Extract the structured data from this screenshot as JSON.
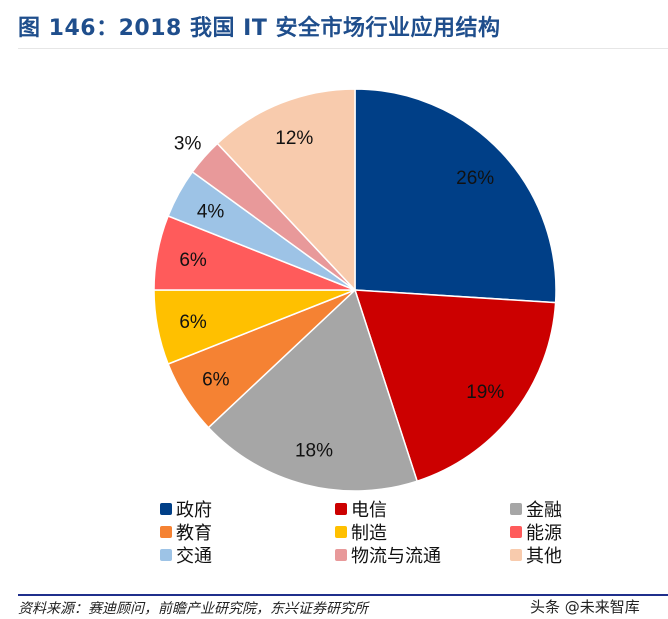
{
  "title": "图 146：2018 我国 IT 安全市场行业应用结构",
  "source": "资料来源：赛迪顾问，前瞻产业研究院，东兴证券研究所",
  "watermark": "头条 @未来智库",
  "chart_data": {
    "type": "pie",
    "title": "图 146：2018 我国 IT 安全市场行业应用结构",
    "start": "12 o'clock, clockwise",
    "legend_position": "bottom",
    "slices": [
      {
        "label": "政府",
        "value": 26,
        "text": "26%",
        "color": "#003f87"
      },
      {
        "label": "电信",
        "value": 19,
        "text": "19%",
        "color": "#cc0000"
      },
      {
        "label": "金融",
        "value": 18,
        "text": "18%",
        "color": "#a6a6a6"
      },
      {
        "label": "教育",
        "value": 6,
        "text": "6%",
        "color": "#f58233"
      },
      {
        "label": "制造",
        "value": 6,
        "text": "6%",
        "color": "#ffc000"
      },
      {
        "label": "能源",
        "value": 6,
        "text": "6%",
        "color": "#ff5b5b"
      },
      {
        "label": "交通",
        "value": 4,
        "text": "4%",
        "color": "#9dc3e6"
      },
      {
        "label": "物流与流通",
        "value": 3,
        "text": "3%",
        "color": "#e8999a"
      },
      {
        "label": "其他",
        "value": 12,
        "text": "12%",
        "color": "#f8cbad"
      }
    ]
  }
}
